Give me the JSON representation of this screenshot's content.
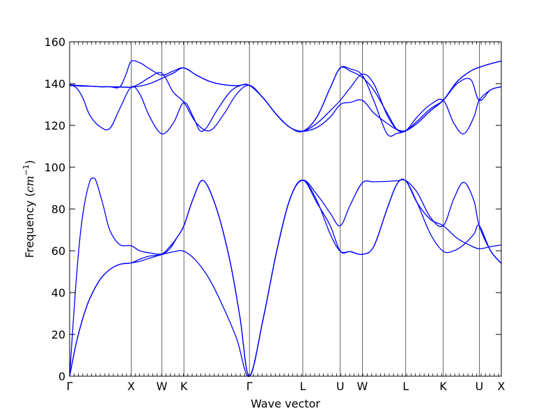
{
  "chart_data": {
    "type": "line",
    "title": "",
    "xlabel": "Wave vector",
    "ylabel_prefix": "Frequency (",
    "ylabel_unit_base": "cm",
    "ylabel_unit_exp": "−1",
    "ylabel_suffix": ")",
    "ylim": [
      0,
      160
    ],
    "yticks": [
      0,
      20,
      40,
      60,
      80,
      100,
      120,
      140,
      160
    ],
    "xlim": [
      0,
      6.46
    ],
    "high_symmetry_points": [
      {
        "label": "Γ",
        "x": 0.0
      },
      {
        "label": "X",
        "x": 0.92
      },
      {
        "label": "W",
        "x": 1.38
      },
      {
        "label": "K",
        "x": 1.71
      },
      {
        "label": "Γ",
        "x": 2.69
      },
      {
        "label": "L",
        "x": 3.49
      },
      {
        "label": "U",
        "x": 4.05
      },
      {
        "label": "W",
        "x": 4.38
      },
      {
        "label": "L",
        "x": 5.03
      },
      {
        "label": "K",
        "x": 5.59
      },
      {
        "label": "U",
        "x": 6.13
      },
      {
        "label": "X",
        "x": 6.46
      }
    ],
    "minor_tick_step": 0.0655,
    "line_color": "#0000ff",
    "series": [
      {
        "x": [
          0,
          0.1,
          0.2,
          0.3,
          0.45,
          0.6,
          0.75,
          0.92,
          1.05,
          1.2,
          1.38,
          1.55,
          1.71,
          1.9,
          2.1,
          2.3,
          2.5,
          2.69,
          2.9,
          3.1,
          3.3,
          3.49,
          3.7,
          3.9,
          4.05,
          4.2,
          4.38,
          4.55,
          4.75,
          4.9,
          5.03,
          5.2,
          5.4,
          5.59,
          5.8,
          6.0,
          6.13,
          6.3,
          6.46
        ],
        "y": [
          0,
          16,
          28,
          37,
          46,
          51,
          53.5,
          54.2,
          55,
          56.5,
          58.2,
          59.5,
          59.8,
          55,
          46,
          33,
          18,
          0,
          28,
          60,
          85,
          93.8,
          84,
          68,
          59.8,
          59.6,
          58.3,
          62,
          80,
          92,
          93.5,
          83,
          75,
          72,
          66,
          62.5,
          61,
          62,
          62.8
        ]
      },
      {
        "x": [
          0,
          0.1,
          0.2,
          0.3,
          0.45,
          0.6,
          0.75,
          0.92,
          1.05,
          1.2,
          1.38,
          1.5,
          1.6,
          1.71,
          1.85,
          2.0,
          2.2,
          2.4,
          2.55,
          2.69,
          2.9,
          3.1,
          3.3,
          3.49,
          3.7,
          3.9,
          4.05,
          4.2,
          4.38,
          4.55,
          4.75,
          4.9,
          5.03,
          5.2,
          5.4,
          5.59,
          5.75,
          5.9,
          6.05,
          6.13,
          6.3,
          6.46
        ],
        "y": [
          0,
          16,
          28,
          37,
          46,
          51,
          53.5,
          54.2,
          56,
          57.5,
          58.2,
          61,
          66,
          72,
          85,
          93.6,
          80,
          55,
          28,
          0,
          28,
          60,
          85,
          93.8,
          83,
          72,
          59.8,
          59.6,
          58.3,
          62,
          80,
          92,
          93.5,
          83,
          68,
          59.8,
          60,
          63,
          68,
          72,
          60,
          54
        ]
      },
      {
        "x": [
          0,
          0.08,
          0.15,
          0.22,
          0.3,
          0.35,
          0.4,
          0.5,
          0.6,
          0.75,
          0.92,
          1.05,
          1.2,
          1.38,
          1.5,
          1.6,
          1.71,
          1.85,
          2.0,
          2.2,
          2.4,
          2.55,
          2.69,
          2.9,
          3.1,
          3.3,
          3.49,
          3.7,
          3.9,
          4.05,
          4.2,
          4.38,
          4.55,
          4.75,
          4.9,
          5.03,
          5.2,
          5.4,
          5.59,
          5.75,
          5.9,
          6.05,
          6.13,
          6.3,
          6.46
        ],
        "y": [
          0,
          38,
          65,
          82,
          93,
          94.8,
          93,
          82,
          70,
          63,
          62.4,
          60,
          59,
          58.5,
          62,
          66,
          72,
          85,
          93.6,
          80,
          55,
          28,
          0,
          28,
          60,
          85,
          93.8,
          87,
          78,
          72,
          82,
          92.5,
          93,
          93.2,
          93.5,
          93.6,
          88,
          76,
          72,
          85,
          92.8,
          84,
          72,
          60,
          54
        ]
      },
      {
        "x": [
          0,
          0.1,
          0.2,
          0.3,
          0.45,
          0.6,
          0.75,
          0.92,
          1.05,
          1.2,
          1.38,
          1.55,
          1.71,
          1.9,
          2.1,
          2.3,
          2.5,
          2.69,
          2.9,
          3.1,
          3.3,
          3.49,
          3.7,
          3.9,
          4.05,
          4.2,
          4.38,
          4.55,
          4.75,
          4.9,
          5.03,
          5.2,
          5.4,
          5.59,
          5.8,
          6.0,
          6.13,
          6.3,
          6.46
        ],
        "y": [
          139,
          139,
          138.8,
          138.8,
          138.5,
          138.5,
          138.4,
          138.3,
          138.8,
          140,
          142.5,
          145,
          147.5,
          144,
          141,
          139.5,
          139,
          139.2,
          133,
          125,
          119,
          117.2,
          119,
          124,
          130,
          131,
          132,
          126,
          121,
          118,
          117.5,
          121,
          127,
          132,
          141,
          146,
          147.8,
          149.5,
          150.8
        ]
      },
      {
        "x": [
          0,
          0.1,
          0.2,
          0.3,
          0.45,
          0.6,
          0.75,
          0.92,
          1.05,
          1.2,
          1.38,
          1.55,
          1.71,
          1.85,
          1.95,
          2.05,
          2.2,
          2.4,
          2.55,
          2.69,
          2.9,
          3.1,
          3.3,
          3.49,
          3.7,
          3.9,
          4.05,
          4.2,
          4.38,
          4.55,
          4.75,
          4.9,
          5.03,
          5.2,
          5.4,
          5.59,
          5.75,
          5.9,
          6.05,
          6.13,
          6.3,
          6.46
        ],
        "y": [
          139.5,
          138,
          133,
          125,
          119.5,
          118.5,
          128,
          138.3,
          135,
          124,
          116,
          121,
          131,
          124,
          117.5,
          119,
          127,
          136,
          139,
          139.2,
          133,
          125,
          119,
          117.2,
          124,
          138,
          147.5,
          146,
          143,
          137,
          126,
          118,
          117.5,
          124,
          130,
          132,
          121,
          116,
          124,
          132,
          137,
          138.5
        ]
      },
      {
        "x": [
          0,
          0.1,
          0.2,
          0.3,
          0.45,
          0.6,
          0.75,
          0.92,
          1.05,
          1.2,
          1.38,
          1.55,
          1.71,
          1.9,
          2.1,
          2.3,
          2.5,
          2.69,
          2.9,
          3.1,
          3.3,
          3.49,
          3.7,
          3.9,
          4.05,
          4.2,
          4.38,
          4.55,
          4.75,
          4.9,
          5.03,
          5.2,
          5.4,
          5.59,
          5.8,
          6.0,
          6.13,
          6.3,
          6.46
        ],
        "y": [
          139.5,
          139,
          138.8,
          138.8,
          138.5,
          138.5,
          138.4,
          138.3,
          140,
          143,
          145,
          136,
          131,
          121,
          117.5,
          125,
          135,
          139.2,
          133,
          125,
          119,
          117.2,
          121,
          127,
          132,
          138,
          144.5,
          140,
          125,
          118,
          117.5,
          122,
          128,
          132,
          140,
          142,
          132,
          137,
          138.5
        ]
      },
      {
        "x": [
          0,
          0.1,
          0.2,
          0.3,
          0.45,
          0.6,
          0.75,
          0.85,
          0.92,
          1.05,
          1.2,
          1.38,
          1.55,
          1.71,
          1.9,
          2.1,
          2.3,
          2.5,
          2.69,
          2.9,
          3.1,
          3.3,
          3.49,
          3.7,
          3.9,
          4.05,
          4.2,
          4.38,
          4.55,
          4.75,
          4.9,
          5.03,
          5.2,
          5.4,
          5.59,
          5.8,
          6.0,
          6.13,
          6.3,
          6.46
        ],
        "y": [
          139.5,
          139.2,
          139,
          138.8,
          138.5,
          138.5,
          138.4,
          145,
          150.6,
          150,
          147,
          144,
          146,
          147.5,
          144,
          141,
          139.5,
          139,
          139.2,
          133,
          125,
          119,
          117.2,
          124,
          138,
          147.5,
          147,
          144,
          132,
          116,
          116.2,
          117.3,
          121,
          127,
          132,
          141,
          146,
          147.8,
          149.5,
          150.8
        ]
      }
    ]
  }
}
